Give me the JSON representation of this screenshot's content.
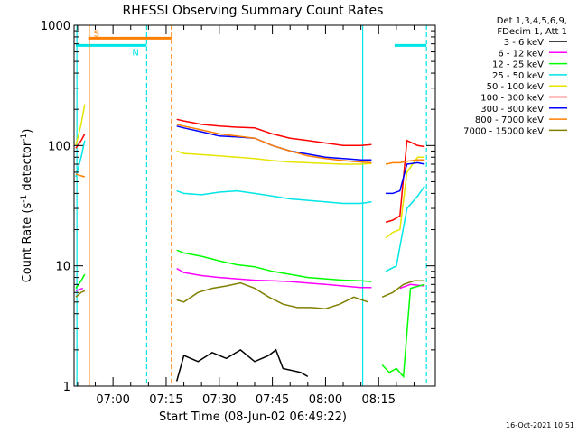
{
  "chart_data": {
    "type": "line",
    "title": "RHESSI Observing Summary Count Rates",
    "xlabel": "Start Time (08-Jun-02 06:49:22)",
    "ylabel_main": "Count Rate (s",
    "ylabel_sup1": "-1",
    "ylabel_mid": " detector",
    "ylabel_sup2": "-1",
    "ylabel_end": ")",
    "yscale": "log",
    "ylim": [
      1,
      1000
    ],
    "xlim_minutes": [
      -11,
      91
    ],
    "y_ticks": [
      {
        "v": 1,
        "label": "1"
      },
      {
        "v": 10,
        "label": "10"
      },
      {
        "v": 100,
        "label": "100"
      },
      {
        "v": 1000,
        "label": "1000"
      }
    ],
    "x_ticks": [
      {
        "v": 0,
        "label": "07:00"
      },
      {
        "v": 15,
        "label": "07:15"
      },
      {
        "v": 30,
        "label": "07:30"
      },
      {
        "v": 45,
        "label": "07:45"
      },
      {
        "v": 60,
        "label": "08:00"
      },
      {
        "v": 75,
        "label": "08:15"
      }
    ],
    "legend_header": [
      "Det 1,3,4,5,6,9,",
      "FDecim 1, Att 1"
    ],
    "timestamp": "16-Oct-2021 10:51",
    "flags": [
      {
        "label": "S",
        "color": "#ff7f00",
        "x_start": -7,
        "x_end": 16.5,
        "y": 780
      },
      {
        "label": "N",
        "color": "#00e5e5",
        "x_start": -10.5,
        "x_end": 9.5,
        "y": 680
      },
      {
        "label": "",
        "color": "#00e5e5",
        "x_start": 79.5,
        "x_end": 88.5,
        "y": 680
      }
    ],
    "vlines": [
      {
        "x": -10.2,
        "color": "#00e5e5",
        "dash": false
      },
      {
        "x": -6.7,
        "color": "#ff7f00",
        "dash": false
      },
      {
        "x": 9.5,
        "color": "#00e5e5",
        "dash": true
      },
      {
        "x": 16.5,
        "color": "#ff7f00",
        "dash": true
      },
      {
        "x": 70.5,
        "color": "#00e5e5",
        "dash": false
      },
      {
        "x": 88.5,
        "color": "#00e5e5",
        "dash": true
      }
    ],
    "series": [
      {
        "name": "3 - 6 keV",
        "color": "#000000",
        "segments": [
          {
            "x": [
              18,
              20,
              24,
              28,
              32,
              36,
              40,
              44,
              46,
              48,
              53,
              55
            ],
            "y": [
              1.1,
              1.8,
              1.6,
              1.9,
              1.7,
              2.0,
              1.6,
              1.8,
              2.0,
              1.4,
              1.3,
              1.2
            ]
          }
        ]
      },
      {
        "name": "6 - 12 keV",
        "color": "#ff00ff",
        "segments": [
          {
            "x": [
              -10.5,
              -8.5
            ],
            "y": [
              6.2,
              6.5
            ]
          },
          {
            "x": [
              18,
              20,
              25,
              30,
              35,
              40,
              45,
              50,
              55,
              60,
              65,
              70,
              73
            ],
            "y": [
              9.5,
              8.8,
              8.3,
              8.0,
              7.8,
              7.6,
              7.5,
              7.4,
              7.2,
              7.0,
              6.8,
              6.6,
              6.6
            ]
          },
          {
            "x": [
              81,
              84,
              88
            ],
            "y": [
              6.5,
              7.0,
              6.8
            ]
          }
        ]
      },
      {
        "name": "12 - 25 keV",
        "color": "#00ff00",
        "segments": [
          {
            "x": [
              -10.5,
              -9,
              -8
            ],
            "y": [
              6.5,
              7.5,
              8.5
            ]
          },
          {
            "x": [
              18,
              20,
              25,
              30,
              35,
              40,
              45,
              50,
              55,
              60,
              65,
              70,
              73
            ],
            "y": [
              13.5,
              12.8,
              12.0,
              11.0,
              10.2,
              9.8,
              9.0,
              8.5,
              8.0,
              7.8,
              7.6,
              7.5,
              7.4
            ]
          },
          {
            "x": [
              76,
              78,
              80,
              82,
              84,
              88
            ],
            "y": [
              1.5,
              1.3,
              1.4,
              1.2,
              6.5,
              7.0
            ]
          }
        ]
      },
      {
        "name": "25 - 50 keV",
        "color": "#00e5e5",
        "segments": [
          {
            "x": [
              -10.5,
              -9,
              -8
            ],
            "y": [
              55,
              80,
              110
            ]
          },
          {
            "x": [
              18,
              20,
              25,
              30,
              35,
              40,
              45,
              50,
              55,
              60,
              65,
              70,
              73
            ],
            "y": [
              42,
              40,
              39,
              41,
              42,
              40,
              38,
              36,
              35,
              34,
              33,
              33,
              34
            ]
          },
          {
            "x": [
              77,
              80,
              83,
              86,
              88
            ],
            "y": [
              9,
              10,
              30,
              38,
              46
            ]
          }
        ]
      },
      {
        "name": "50 - 100 keV",
        "color": "#e5e500",
        "segments": [
          {
            "x": [
              -10.5,
              -9,
              -8
            ],
            "y": [
              100,
              150,
              220
            ]
          },
          {
            "x": [
              18,
              20,
              25,
              30,
              35,
              40,
              45,
              50,
              55,
              60,
              65,
              70,
              73
            ],
            "y": [
              90,
              86,
              84,
              82,
              80,
              78,
              75,
              73,
              72,
              71,
              70,
              70,
              71
            ]
          },
          {
            "x": [
              77,
              79,
              81,
              83,
              86,
              88
            ],
            "y": [
              17,
              19,
              20,
              60,
              80,
              80
            ]
          }
        ]
      },
      {
        "name": "100 - 300 keV",
        "color": "#ff0000",
        "segments": [
          {
            "x": [
              -10.5,
              -9,
              -8
            ],
            "y": [
              95,
              110,
              125
            ]
          },
          {
            "x": [
              18,
              20,
              25,
              30,
              35,
              40,
              45,
              50,
              55,
              60,
              65,
              70,
              73
            ],
            "y": [
              165,
              160,
              150,
              145,
              142,
              140,
              125,
              115,
              110,
              105,
              100,
              100,
              102
            ]
          },
          {
            "x": [
              77,
              79,
              81,
              83,
              86,
              88
            ],
            "y": [
              23,
              24,
              26,
              110,
              100,
              98
            ]
          }
        ]
      },
      {
        "name": "300 - 800 keV",
        "color": "#0000ff",
        "segments": [
          {
            "x": [
              18,
              20,
              25,
              30,
              35,
              40,
              45,
              50,
              55,
              60,
              65,
              70,
              73
            ],
            "y": [
              145,
              140,
              130,
              120,
              118,
              115,
              100,
              90,
              85,
              80,
              78,
              76,
              76
            ]
          },
          {
            "x": [
              77,
              79,
              81,
              83,
              86,
              88
            ],
            "y": [
              40,
              40,
              42,
              70,
              72,
              70
            ]
          }
        ]
      },
      {
        "name": "800 - 7000 keV",
        "color": "#ff7f00",
        "segments": [
          {
            "x": [
              -10.5,
              -9,
              -8
            ],
            "y": [
              58,
              56,
              55
            ]
          },
          {
            "x": [
              18,
              20,
              25,
              30,
              35,
              40,
              45,
              50,
              55,
              60,
              65,
              70,
              73
            ],
            "y": [
              150,
              145,
              135,
              125,
              120,
              115,
              100,
              90,
              82,
              78,
              75,
              73,
              72
            ]
          },
          {
            "x": [
              77,
              79,
              81,
              83,
              86,
              88
            ],
            "y": [
              70,
              72,
              72,
              74,
              76,
              76
            ]
          }
        ]
      },
      {
        "name": "7000 - 15000 keV",
        "color": "#808000",
        "segments": [
          {
            "x": [
              -10.5,
              -9,
              -8
            ],
            "y": [
              5.5,
              6.0,
              6.2
            ]
          },
          {
            "x": [
              18,
              20,
              24,
              28,
              32,
              36,
              40,
              44,
              48,
              52,
              56,
              60,
              64,
              68,
              72
            ],
            "y": [
              5.2,
              5.0,
              6.0,
              6.5,
              6.8,
              7.2,
              6.5,
              5.5,
              4.8,
              4.5,
              4.5,
              4.4,
              4.8,
              5.5,
              5.0
            ]
          },
          {
            "x": [
              76,
              79,
              82,
              85,
              88
            ],
            "y": [
              5.5,
              6.0,
              7.0,
              7.5,
              7.5
            ]
          }
        ]
      }
    ]
  }
}
